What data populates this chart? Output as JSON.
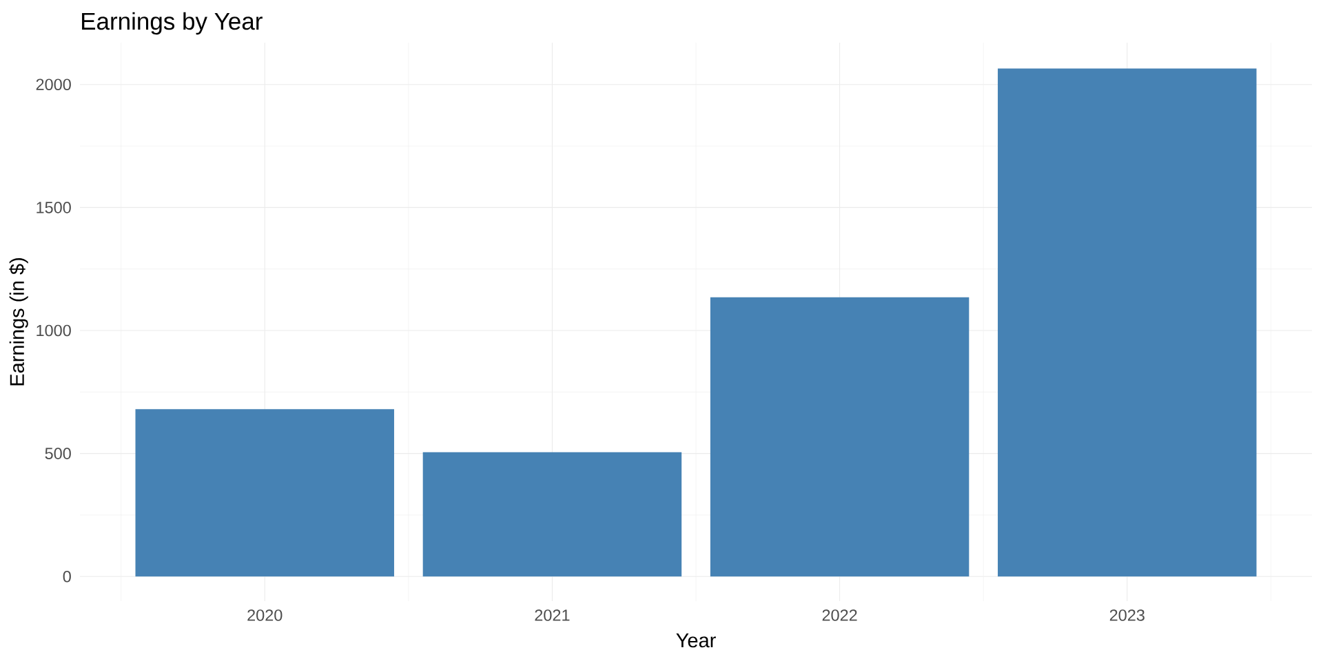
{
  "chart_data": {
    "type": "bar",
    "title": "Earnings by Year",
    "xlabel": "Year",
    "ylabel": "Earnings (in $)",
    "categories": [
      "2020",
      "2021",
      "2022",
      "2023"
    ],
    "values": [
      680,
      505,
      1135,
      2065
    ],
    "color": "#4682b4",
    "ylim": [
      -100,
      2170
    ],
    "yticks": [
      0,
      500,
      1000,
      1500,
      2000
    ],
    "grid": true
  }
}
